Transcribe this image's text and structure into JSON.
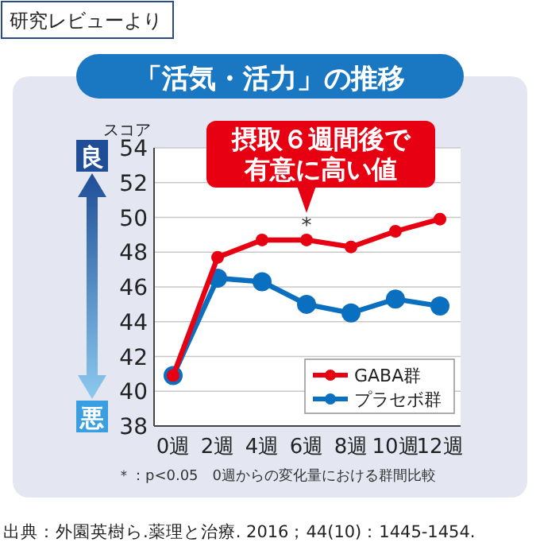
{
  "chart_data": {
    "type": "line",
    "title": "「活気・活力」の推移",
    "ylabel": "スコア",
    "categories": [
      "0週",
      "2週",
      "4週",
      "6週",
      "8週",
      "10週",
      "12週"
    ],
    "series": [
      {
        "name": "GABA群",
        "color": "#e60012",
        "values": [
          40.9,
          47.7,
          48.7,
          48.7,
          48.3,
          49.2,
          49.9
        ]
      },
      {
        "name": "プラセボ群",
        "color": "#0a6fbf",
        "values": [
          40.9,
          46.5,
          46.3,
          45.0,
          44.5,
          45.3,
          44.9
        ]
      }
    ],
    "ylim": [
      38,
      54
    ],
    "yticks": [
      38,
      40,
      42,
      44,
      46,
      48,
      50,
      52,
      54
    ],
    "grid": "y",
    "legend": "bottom right",
    "marker": "circle",
    "annotations": [
      "研究レビューより",
      "良",
      "悪",
      {
        "text": "摂取６週間後で有意に高い値",
        "x": "6週",
        "y": 48.7
      },
      "*",
      "＊：p<0.05　0週からの変化量における群間比較",
      "出典：外園英樹ら.薬理と治療. 2016；44(10)：1445-1454."
    ]
  }
}
